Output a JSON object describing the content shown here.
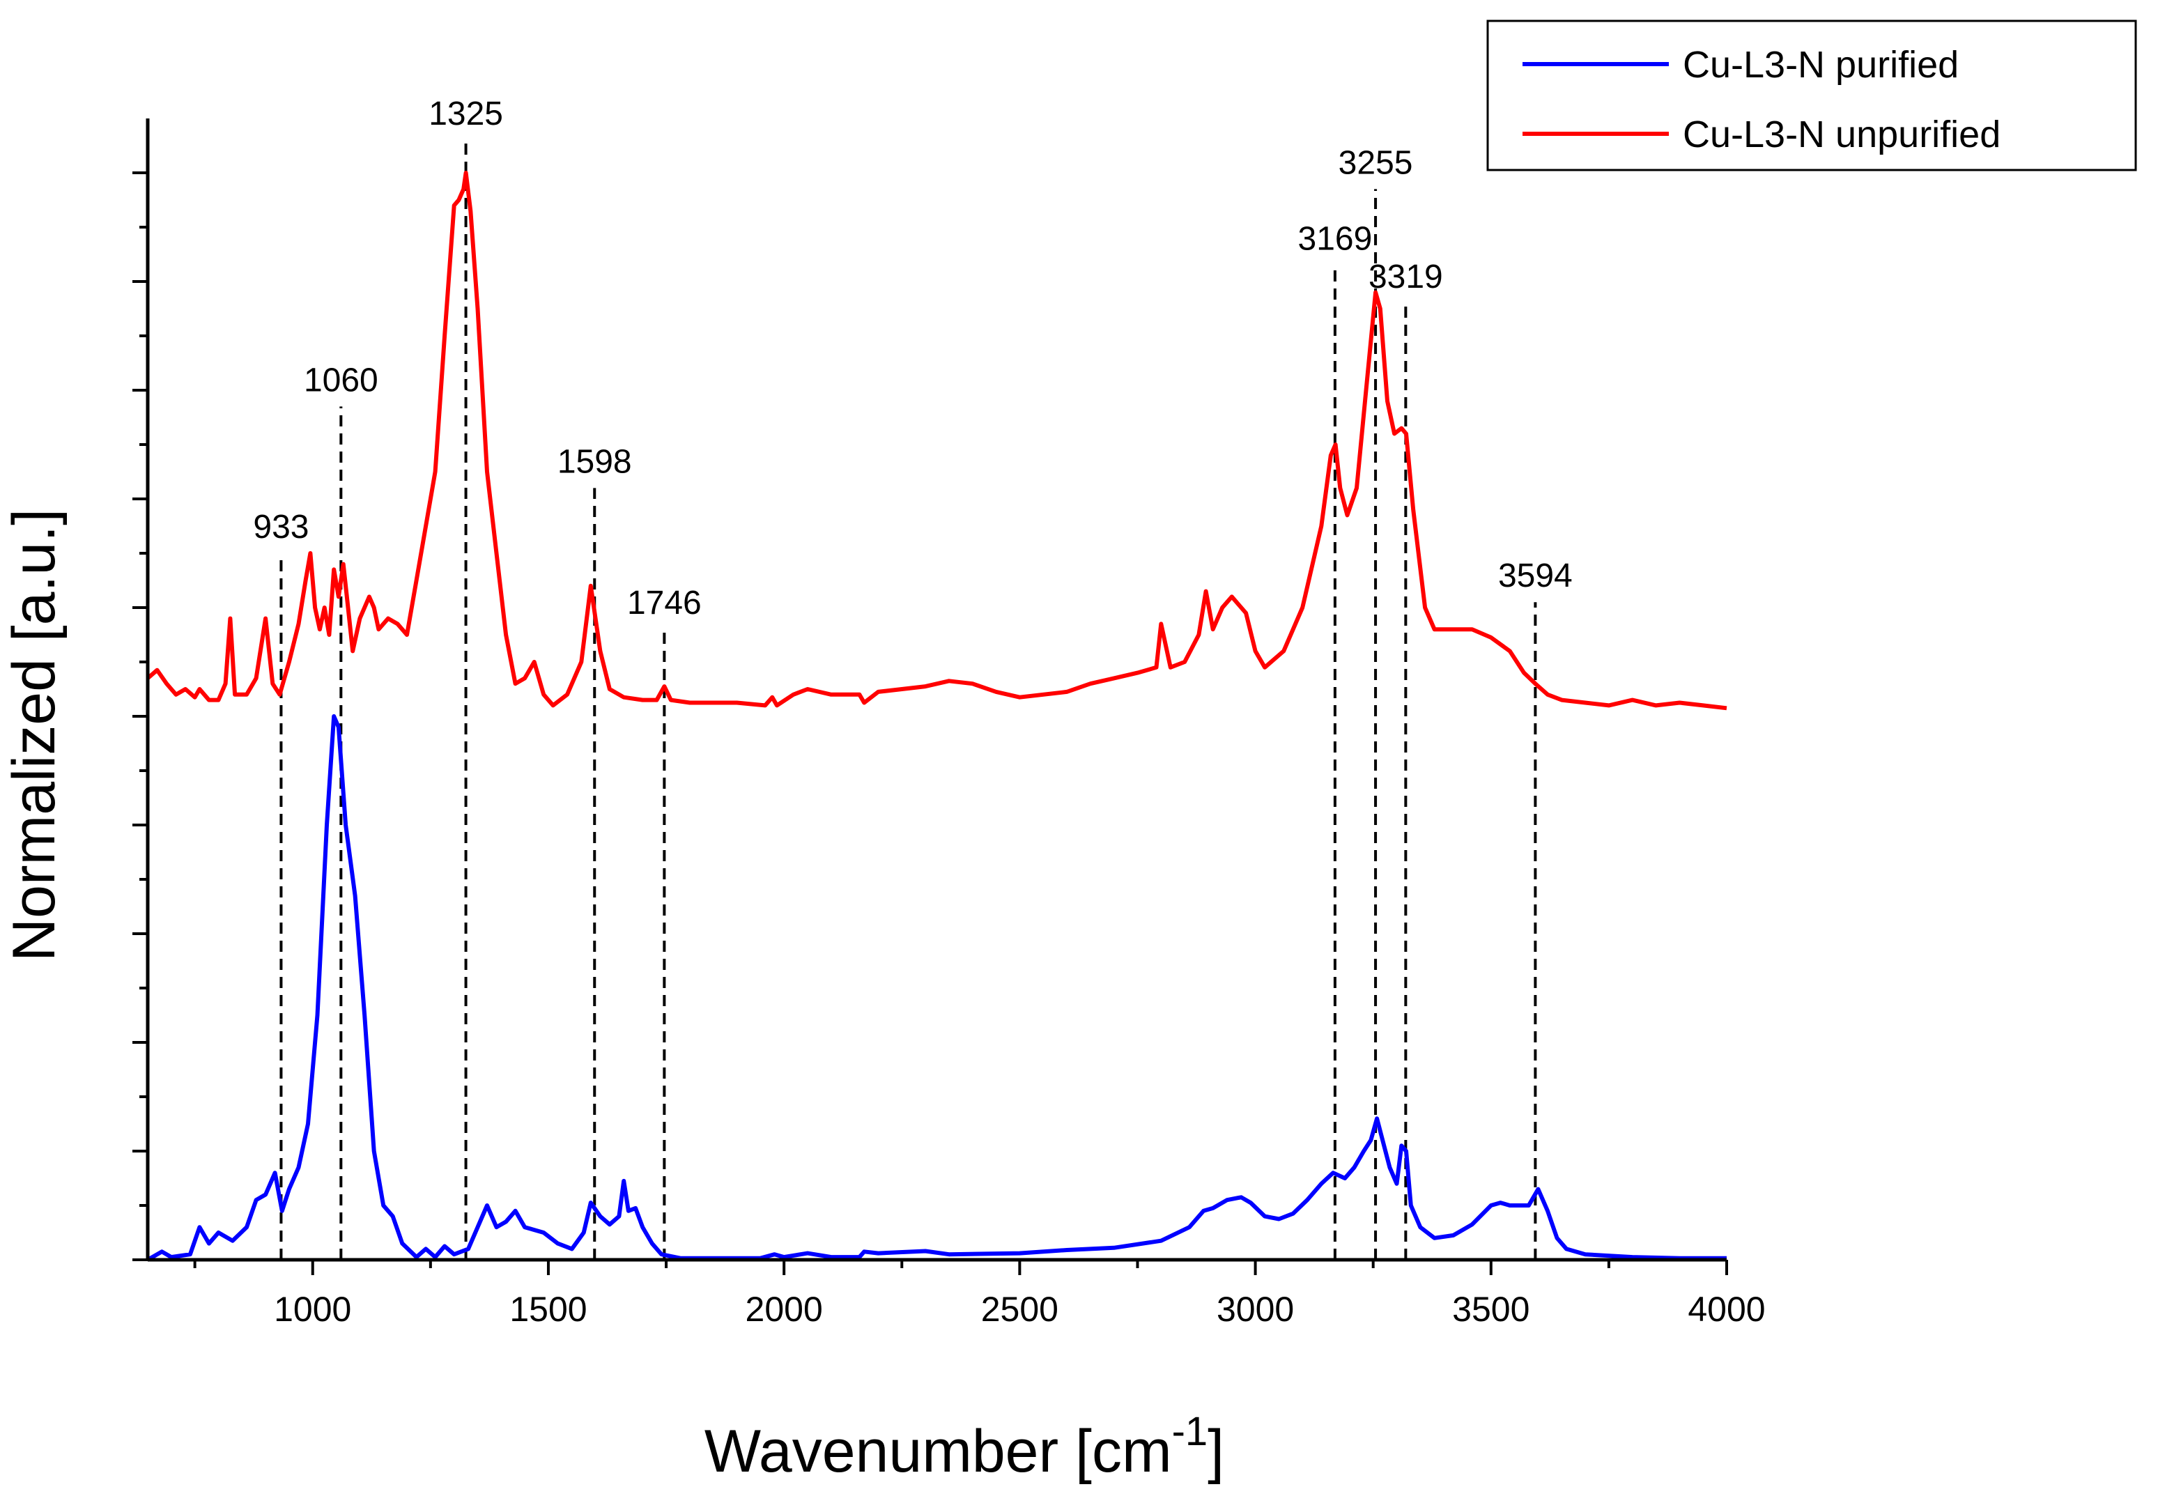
{
  "chart_data": {
    "type": "line",
    "title": "",
    "xlabel": "Wavenumber [cm",
    "xlabel_superscript": "-1",
    "xlabel_suffix": "]",
    "ylabel": "Normalized [a.u.]",
    "xlim": [
      650,
      4000
    ],
    "ylim": [
      0,
      2.1
    ],
    "x_ticks": [
      1000,
      1500,
      2000,
      2500,
      3000,
      3500,
      4000
    ],
    "x_tick_labels": [
      "1000",
      "1500",
      "2000",
      "2500",
      "3000",
      "3500",
      "4000"
    ],
    "y_tick_labels_shown": false,
    "grid": false,
    "legend_position": "top-right",
    "series": [
      {
        "name": "Cu-L3-N purified",
        "color": "#0000ff",
        "points": [
          [
            650,
            0.0
          ],
          [
            680,
            0.015
          ],
          [
            700,
            0.005
          ],
          [
            740,
            0.01
          ],
          [
            760,
            0.06
          ],
          [
            780,
            0.03
          ],
          [
            800,
            0.05
          ],
          [
            830,
            0.035
          ],
          [
            860,
            0.06
          ],
          [
            880,
            0.11
          ],
          [
            900,
            0.12
          ],
          [
            920,
            0.16
          ],
          [
            935,
            0.09
          ],
          [
            950,
            0.13
          ],
          [
            970,
            0.17
          ],
          [
            990,
            0.25
          ],
          [
            1010,
            0.45
          ],
          [
            1030,
            0.8
          ],
          [
            1045,
            1.0
          ],
          [
            1055,
            0.98
          ],
          [
            1070,
            0.8
          ],
          [
            1090,
            0.67
          ],
          [
            1110,
            0.45
          ],
          [
            1130,
            0.2
          ],
          [
            1150,
            0.1
          ],
          [
            1170,
            0.08
          ],
          [
            1190,
            0.03
          ],
          [
            1220,
            0.005
          ],
          [
            1240,
            0.02
          ],
          [
            1260,
            0.005
          ],
          [
            1280,
            0.025
          ],
          [
            1300,
            0.01
          ],
          [
            1330,
            0.02
          ],
          [
            1350,
            0.06
          ],
          [
            1370,
            0.1
          ],
          [
            1390,
            0.06
          ],
          [
            1410,
            0.07
          ],
          [
            1430,
            0.09
          ],
          [
            1450,
            0.06
          ],
          [
            1470,
            0.055
          ],
          [
            1490,
            0.05
          ],
          [
            1520,
            0.03
          ],
          [
            1550,
            0.02
          ],
          [
            1575,
            0.05
          ],
          [
            1590,
            0.105
          ],
          [
            1610,
            0.08
          ],
          [
            1630,
            0.065
          ],
          [
            1650,
            0.08
          ],
          [
            1660,
            0.145
          ],
          [
            1670,
            0.09
          ],
          [
            1685,
            0.095
          ],
          [
            1700,
            0.06
          ],
          [
            1720,
            0.03
          ],
          [
            1740,
            0.01
          ],
          [
            1780,
            0.003
          ],
          [
            1850,
            0.003
          ],
          [
            1950,
            0.003
          ],
          [
            1980,
            0.01
          ],
          [
            2000,
            0.005
          ],
          [
            2050,
            0.012
          ],
          [
            2100,
            0.005
          ],
          [
            2160,
            0.005
          ],
          [
            2170,
            0.015
          ],
          [
            2200,
            0.012
          ],
          [
            2300,
            0.016
          ],
          [
            2350,
            0.01
          ],
          [
            2500,
            0.012
          ],
          [
            2600,
            0.018
          ],
          [
            2700,
            0.022
          ],
          [
            2800,
            0.035
          ],
          [
            2860,
            0.06
          ],
          [
            2890,
            0.09
          ],
          [
            2910,
            0.095
          ],
          [
            2940,
            0.11
          ],
          [
            2970,
            0.115
          ],
          [
            2990,
            0.105
          ],
          [
            3020,
            0.08
          ],
          [
            3050,
            0.075
          ],
          [
            3080,
            0.085
          ],
          [
            3110,
            0.11
          ],
          [
            3140,
            0.14
          ],
          [
            3165,
            0.16
          ],
          [
            3190,
            0.15
          ],
          [
            3210,
            0.17
          ],
          [
            3230,
            0.2
          ],
          [
            3245,
            0.22
          ],
          [
            3258,
            0.26
          ],
          [
            3270,
            0.22
          ],
          [
            3285,
            0.17
          ],
          [
            3300,
            0.14
          ],
          [
            3310,
            0.21
          ],
          [
            3320,
            0.2
          ],
          [
            3330,
            0.1
          ],
          [
            3350,
            0.06
          ],
          [
            3380,
            0.04
          ],
          [
            3420,
            0.045
          ],
          [
            3460,
            0.065
          ],
          [
            3500,
            0.1
          ],
          [
            3520,
            0.105
          ],
          [
            3540,
            0.1
          ],
          [
            3580,
            0.1
          ],
          [
            3600,
            0.13
          ],
          [
            3620,
            0.09
          ],
          [
            3640,
            0.04
          ],
          [
            3660,
            0.02
          ],
          [
            3700,
            0.01
          ],
          [
            3800,
            0.005
          ],
          [
            3900,
            0.003
          ],
          [
            4000,
            0.003
          ]
        ]
      },
      {
        "name": "Cu-L3-N unpurified",
        "color": "#ff0000",
        "points": [
          [
            650,
            1.07
          ],
          [
            670,
            1.085
          ],
          [
            690,
            1.06
          ],
          [
            710,
            1.04
          ],
          [
            730,
            1.05
          ],
          [
            750,
            1.035
          ],
          [
            760,
            1.05
          ],
          [
            780,
            1.03
          ],
          [
            800,
            1.03
          ],
          [
            815,
            1.06
          ],
          [
            825,
            1.18
          ],
          [
            835,
            1.04
          ],
          [
            860,
            1.04
          ],
          [
            880,
            1.07
          ],
          [
            900,
            1.18
          ],
          [
            915,
            1.06
          ],
          [
            930,
            1.04
          ],
          [
            950,
            1.1
          ],
          [
            970,
            1.17
          ],
          [
            985,
            1.25
          ],
          [
            995,
            1.3
          ],
          [
            1005,
            1.2
          ],
          [
            1015,
            1.16
          ],
          [
            1025,
            1.2
          ],
          [
            1035,
            1.15
          ],
          [
            1045,
            1.27
          ],
          [
            1055,
            1.22
          ],
          [
            1065,
            1.28
          ],
          [
            1075,
            1.2
          ],
          [
            1085,
            1.12
          ],
          [
            1100,
            1.18
          ],
          [
            1120,
            1.22
          ],
          [
            1130,
            1.2
          ],
          [
            1140,
            1.16
          ],
          [
            1160,
            1.18
          ],
          [
            1180,
            1.17
          ],
          [
            1200,
            1.15
          ],
          [
            1220,
            1.25
          ],
          [
            1240,
            1.35
          ],
          [
            1260,
            1.45
          ],
          [
            1280,
            1.7
          ],
          [
            1300,
            1.94
          ],
          [
            1310,
            1.95
          ],
          [
            1320,
            1.97
          ],
          [
            1325,
            2.0
          ],
          [
            1335,
            1.93
          ],
          [
            1350,
            1.75
          ],
          [
            1370,
            1.45
          ],
          [
            1390,
            1.3
          ],
          [
            1410,
            1.15
          ],
          [
            1430,
            1.06
          ],
          [
            1450,
            1.07
          ],
          [
            1470,
            1.1
          ],
          [
            1490,
            1.04
          ],
          [
            1510,
            1.02
          ],
          [
            1540,
            1.04
          ],
          [
            1570,
            1.1
          ],
          [
            1590,
            1.24
          ],
          [
            1610,
            1.12
          ],
          [
            1630,
            1.05
          ],
          [
            1660,
            1.035
          ],
          [
            1700,
            1.03
          ],
          [
            1730,
            1.03
          ],
          [
            1746,
            1.055
          ],
          [
            1760,
            1.03
          ],
          [
            1800,
            1.025
          ],
          [
            1900,
            1.025
          ],
          [
            1960,
            1.02
          ],
          [
            1975,
            1.035
          ],
          [
            1985,
            1.02
          ],
          [
            2020,
            1.04
          ],
          [
            2050,
            1.05
          ],
          [
            2100,
            1.04
          ],
          [
            2160,
            1.04
          ],
          [
            2170,
            1.025
          ],
          [
            2200,
            1.045
          ],
          [
            2300,
            1.055
          ],
          [
            2350,
            1.065
          ],
          [
            2400,
            1.06
          ],
          [
            2450,
            1.045
          ],
          [
            2500,
            1.035
          ],
          [
            2600,
            1.045
          ],
          [
            2650,
            1.06
          ],
          [
            2700,
            1.07
          ],
          [
            2750,
            1.08
          ],
          [
            2790,
            1.09
          ],
          [
            2800,
            1.17
          ],
          [
            2820,
            1.09
          ],
          [
            2850,
            1.1
          ],
          [
            2880,
            1.15
          ],
          [
            2895,
            1.23
          ],
          [
            2910,
            1.16
          ],
          [
            2930,
            1.2
          ],
          [
            2950,
            1.22
          ],
          [
            2980,
            1.19
          ],
          [
            3000,
            1.12
          ],
          [
            3020,
            1.09
          ],
          [
            3060,
            1.12
          ],
          [
            3100,
            1.2
          ],
          [
            3140,
            1.35
          ],
          [
            3160,
            1.48
          ],
          [
            3170,
            1.5
          ],
          [
            3180,
            1.42
          ],
          [
            3195,
            1.37
          ],
          [
            3215,
            1.42
          ],
          [
            3235,
            1.6
          ],
          [
            3255,
            1.78
          ],
          [
            3265,
            1.75
          ],
          [
            3280,
            1.58
          ],
          [
            3295,
            1.52
          ],
          [
            3310,
            1.53
          ],
          [
            3320,
            1.52
          ],
          [
            3335,
            1.38
          ],
          [
            3360,
            1.2
          ],
          [
            3380,
            1.16
          ],
          [
            3420,
            1.16
          ],
          [
            3460,
            1.16
          ],
          [
            3500,
            1.145
          ],
          [
            3540,
            1.12
          ],
          [
            3570,
            1.08
          ],
          [
            3594,
            1.06
          ],
          [
            3620,
            1.04
          ],
          [
            3650,
            1.03
          ],
          [
            3700,
            1.025
          ],
          [
            3750,
            1.02
          ],
          [
            3800,
            1.03
          ],
          [
            3850,
            1.02
          ],
          [
            3900,
            1.025
          ],
          [
            3950,
            1.02
          ],
          [
            4000,
            1.015
          ]
        ]
      }
    ],
    "annotations": [
      {
        "x": 933,
        "label": "933",
        "y_top": 1.3
      },
      {
        "x": 1060,
        "label": "1060",
        "y_top": 1.57
      },
      {
        "x": 1325,
        "label": "1325",
        "y_top": 2.06
      },
      {
        "x": 1598,
        "label": "1598",
        "y_top": 1.42
      },
      {
        "x": 1746,
        "label": "1746",
        "y_top": 1.16
      },
      {
        "x": 3169,
        "label": "3169",
        "y_top": 1.83
      },
      {
        "x": 3255,
        "label": "3255",
        "y_top": 1.97
      },
      {
        "x": 3319,
        "label": "3319",
        "y_top": 1.76
      },
      {
        "x": 3594,
        "label": "3594",
        "y_top": 1.21
      }
    ]
  }
}
